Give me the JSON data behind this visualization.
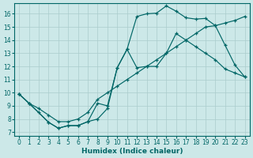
{
  "xlabel": "Humidex (Indice chaleur)",
  "bg_color": "#cce8e8",
  "line_color": "#006666",
  "grid_color": "#aacccc",
  "xlim": [
    -0.5,
    23.5
  ],
  "ylim": [
    6.7,
    16.8
  ],
  "xticks": [
    0,
    1,
    2,
    3,
    4,
    5,
    6,
    7,
    8,
    9,
    10,
    11,
    12,
    13,
    14,
    15,
    16,
    17,
    18,
    19,
    20,
    21,
    22,
    23
  ],
  "yticks": [
    7,
    8,
    9,
    10,
    11,
    12,
    13,
    14,
    15,
    16
  ],
  "line1_x": [
    0,
    1,
    2,
    3,
    4,
    5,
    6,
    7,
    8,
    9,
    10,
    11,
    12,
    13,
    14,
    15,
    16,
    17,
    18,
    19,
    20,
    21,
    22,
    23
  ],
  "line1_y": [
    9.9,
    9.2,
    8.5,
    7.75,
    7.3,
    7.5,
    7.5,
    7.8,
    9.2,
    9.0,
    11.9,
    13.3,
    15.8,
    16.0,
    16.05,
    16.6,
    16.2,
    15.7,
    15.6,
    15.65,
    15.1,
    13.6,
    12.1,
    11.2
  ],
  "line2_x": [
    0,
    1,
    2,
    3,
    4,
    5,
    6,
    7,
    8,
    9,
    10,
    11,
    12,
    13,
    14,
    15,
    16,
    17,
    18,
    19,
    20,
    21,
    22,
    23
  ],
  "line2_y": [
    9.9,
    9.2,
    8.8,
    8.3,
    7.8,
    7.8,
    8.0,
    8.5,
    9.5,
    10.0,
    10.5,
    11.0,
    11.5,
    12.0,
    12.5,
    13.0,
    13.5,
    14.0,
    14.5,
    15.0,
    15.1,
    15.3,
    15.5,
    15.8
  ],
  "line3_x": [
    0,
    1,
    3,
    4,
    5,
    6,
    7,
    8,
    9,
    10,
    11,
    12,
    13,
    14,
    15,
    16,
    17,
    18,
    19,
    20,
    21,
    22,
    23
  ],
  "line3_y": [
    9.9,
    9.2,
    7.75,
    7.3,
    7.5,
    7.5,
    7.8,
    8.0,
    8.8,
    11.9,
    13.3,
    11.9,
    12.0,
    12.0,
    13.0,
    14.5,
    14.0,
    13.5,
    13.0,
    12.5,
    11.8,
    11.5,
    11.2
  ]
}
